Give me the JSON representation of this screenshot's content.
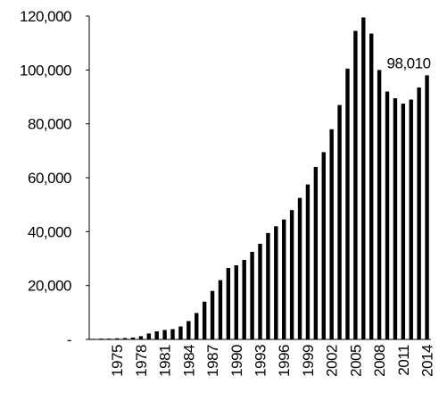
{
  "chart_data": {
    "type": "bar",
    "categories": [
      null,
      null,
      null,
      "1975",
      null,
      null,
      "1978",
      null,
      null,
      "1981",
      null,
      null,
      "1984",
      null,
      null,
      "1987",
      null,
      null,
      "1990",
      null,
      null,
      "1993",
      null,
      null,
      "1996",
      null,
      null,
      "1999",
      null,
      null,
      "2002",
      null,
      null,
      "2005",
      null,
      null,
      "2008",
      null,
      null,
      "2011",
      null,
      null,
      "2014"
    ],
    "values": [
      200,
      300,
      300,
      400,
      500,
      700,
      1200,
      2200,
      3000,
      3500,
      3800,
      4800,
      6800,
      9800,
      14000,
      18000,
      22000,
      26500,
      27500,
      29500,
      32500,
      35500,
      39500,
      42000,
      44500,
      48000,
      52500,
      57500,
      64000,
      69500,
      78000,
      87000,
      100500,
      114500,
      119500,
      113500,
      100000,
      92000,
      89500,
      87500,
      89000,
      93500,
      98010
    ],
    "value_labels": [
      null,
      null,
      null,
      null,
      null,
      null,
      null,
      null,
      null,
      null,
      null,
      null,
      null,
      null,
      null,
      null,
      null,
      null,
      null,
      null,
      null,
      null,
      null,
      null,
      null,
      null,
      null,
      null,
      null,
      null,
      null,
      null,
      null,
      null,
      null,
      null,
      null,
      null,
      null,
      null,
      null,
      null,
      "98,010"
    ],
    "color": "#000000",
    "ylim": [
      0,
      120000
    ],
    "yticks": [
      {
        "value": 0,
        "label": "-"
      },
      {
        "value": 20000,
        "label": "20,000"
      },
      {
        "value": 40000,
        "label": "40,000"
      },
      {
        "value": 60000,
        "label": "60,000"
      },
      {
        "value": 80000,
        "label": "80,000"
      },
      {
        "value": 100000,
        "label": "100,000"
      },
      {
        "value": 120000,
        "label": "120,000"
      }
    ],
    "grid": false
  }
}
